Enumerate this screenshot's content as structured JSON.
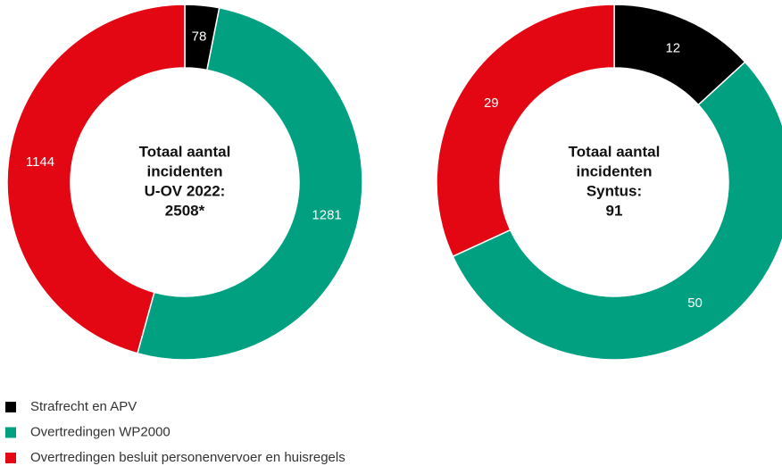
{
  "chart_data": [
    {
      "type": "donut",
      "center_label": [
        "Totaal aantal",
        "incidenten",
        "U-OV 2022:",
        "2508*"
      ],
      "categories": [
        "Strafrecht en APV",
        "Overtredingen WP2000",
        "Overtredingen besluit personenvervoer en huisregels"
      ],
      "colors": [
        "#000000",
        "#00a080",
        "#e30613"
      ],
      "values": [
        78,
        1281,
        1144
      ]
    },
    {
      "type": "donut",
      "center_label": [
        "Totaal aantal",
        "incidenten",
        "Syntus:",
        "91"
      ],
      "categories": [
        "Strafrecht en APV",
        "Overtredingen WP2000",
        "Overtredingen besluit personenvervoer en huisregels"
      ],
      "colors": [
        "#000000",
        "#00a080",
        "#e30613"
      ],
      "values": [
        12,
        50,
        29
      ]
    }
  ]
}
